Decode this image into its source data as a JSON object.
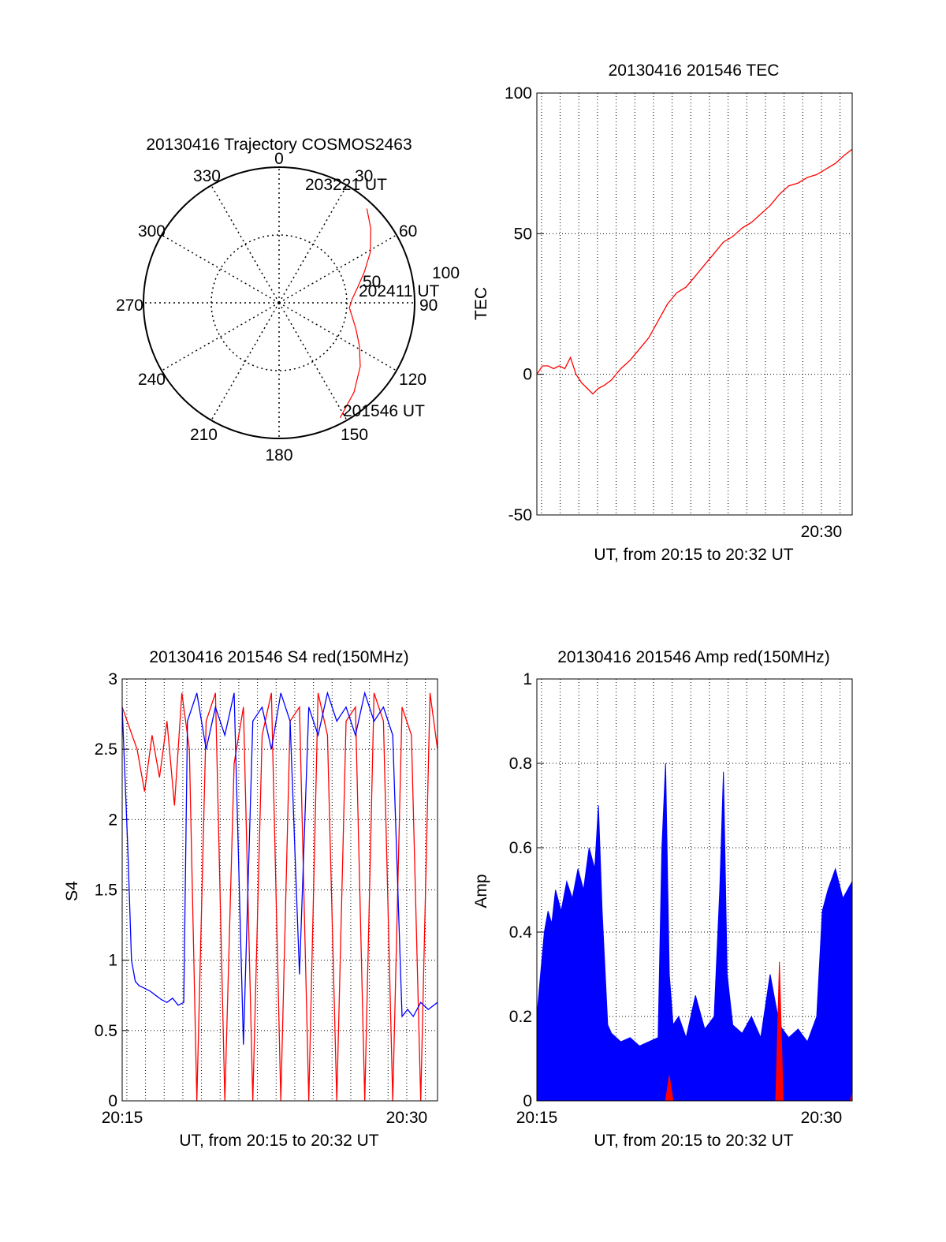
{
  "chart_data": [
    {
      "id": "polar",
      "type": "scatter",
      "title": "20130416 Trajectory COSMOS2463",
      "azimuth_labels": [
        "0",
        "30",
        "60",
        "90",
        "120",
        "150",
        "180",
        "210",
        "240",
        "270",
        "300",
        "330"
      ],
      "radial_labels": [
        "50",
        "100"
      ],
      "point_labels": [
        "203221 UT",
        "202411 UT",
        "201546 UT"
      ],
      "trajectory": {
        "azimuth_deg": [
          152,
          140,
          128,
          118,
          109,
          101,
          94,
          87,
          79,
          70,
          61,
          51,
          43
        ],
        "radius": [
          96,
          86,
          76,
          67,
          60,
          55,
          52,
          54,
          59,
          67,
          77,
          87,
          95
        ]
      },
      "trajectory_color": "#ff0000"
    },
    {
      "id": "tec",
      "type": "line",
      "title": "20130416 201546 TEC",
      "ylabel": "TEC",
      "xlabel": "UT, from 20:15 to 20:32 UT",
      "xlim": [
        0,
        16.9
      ],
      "ylim": [
        -50,
        100
      ],
      "yticks": [
        "-50",
        "0",
        "50",
        "100"
      ],
      "xtick_labels": [
        {
          "x": 15.25,
          "label": "20:30"
        }
      ],
      "x": [
        0,
        0.3,
        0.6,
        0.9,
        1.2,
        1.5,
        1.8,
        2.1,
        2.4,
        2.7,
        3.0,
        3.3,
        3.6,
        4.0,
        4.5,
        5.0,
        5.5,
        6.0,
        6.5,
        7.0,
        7.5,
        8.0,
        8.5,
        9.0,
        9.5,
        10.0,
        10.5,
        11.0,
        11.5,
        12.0,
        12.5,
        13.0,
        13.5,
        14.0,
        14.5,
        15.0,
        15.5,
        16.0,
        16.5,
        16.9
      ],
      "y": [
        0,
        3,
        3,
        2,
        3,
        2,
        6,
        0,
        -3,
        -5,
        -7,
        -5,
        -4,
        -2,
        2,
        5,
        9,
        13,
        19,
        25,
        29,
        31,
        35,
        39,
        43,
        47,
        49,
        52,
        54,
        57,
        60,
        64,
        67,
        68,
        70,
        71,
        73,
        75,
        78,
        80
      ],
      "color": "#ff0000"
    },
    {
      "id": "s4",
      "type": "line",
      "title": "20130416 201546 S4 red(150MHz)",
      "ylabel": "S4",
      "xlabel": "UT, from 20:15 to 20:32 UT",
      "xlim": [
        0,
        16.9
      ],
      "ylim": [
        0,
        3
      ],
      "yticks": [
        "0",
        "0.5",
        "1",
        "1.5",
        "2",
        "2.5",
        "3"
      ],
      "xtick_labels": [
        {
          "x": 0,
          "label": "20:15"
        },
        {
          "x": 15.25,
          "label": "20:30"
        }
      ],
      "series": [
        {
          "color": "#ff0000",
          "x": [
            0,
            0.8,
            1.2,
            1.6,
            2.0,
            2.4,
            2.8,
            3.2,
            3.6,
            4.0,
            4.5,
            5.0,
            5.5,
            6.0,
            6.5,
            7.0,
            7.5,
            8.0,
            8.5,
            9.0,
            9.5,
            10.0,
            10.5,
            11.0,
            11.5,
            12.0,
            12.5,
            13.0,
            13.5,
            14.0,
            14.5,
            15.0,
            15.5,
            16.0,
            16.5,
            16.9
          ],
          "y": [
            2.8,
            2.5,
            2.2,
            2.6,
            2.3,
            2.7,
            2.1,
            2.9,
            2.5,
            0.0,
            2.7,
            2.9,
            0.0,
            2.4,
            2.8,
            0.0,
            2.6,
            2.9,
            0.0,
            2.7,
            2.8,
            0.0,
            2.9,
            2.6,
            0.0,
            2.7,
            2.8,
            0.0,
            2.9,
            2.7,
            0.0,
            2.8,
            2.6,
            0.0,
            2.9,
            2.5
          ]
        },
        {
          "color": "#0000ff",
          "x": [
            0,
            0.3,
            0.5,
            0.7,
            0.9,
            1.2,
            1.5,
            1.8,
            2.1,
            2.4,
            2.7,
            3.0,
            3.3,
            3.5,
            4.0,
            4.5,
            5.0,
            5.5,
            6.0,
            6.5,
            7.0,
            7.5,
            8.0,
            8.5,
            9.0,
            9.5,
            10.0,
            10.5,
            11.0,
            11.5,
            12.0,
            12.5,
            13.0,
            13.5,
            14.0,
            14.5,
            15.0,
            15.3,
            15.6,
            16.0,
            16.4,
            16.9
          ],
          "y": [
            2.8,
            1.8,
            1.0,
            0.85,
            0.82,
            0.8,
            0.78,
            0.75,
            0.72,
            0.7,
            0.73,
            0.68,
            0.7,
            2.7,
            2.9,
            2.5,
            2.8,
            2.6,
            2.9,
            0.4,
            2.7,
            2.8,
            2.5,
            2.9,
            2.7,
            0.9,
            2.8,
            2.6,
            2.9,
            2.7,
            2.8,
            2.6,
            2.9,
            2.7,
            2.8,
            2.6,
            0.6,
            0.65,
            0.6,
            0.7,
            0.65,
            0.7
          ]
        }
      ]
    },
    {
      "id": "amp",
      "type": "area",
      "title": "20130416 201546 Amp red(150MHz)",
      "ylabel": "Amp",
      "xlabel": "UT, from 20:15 to 20:32 UT",
      "xlim": [
        0,
        16.9
      ],
      "ylim": [
        0,
        1
      ],
      "yticks": [
        "0",
        "0.2",
        "0.4",
        "0.6",
        "0.8",
        "1"
      ],
      "xtick_labels": [
        {
          "x": 0,
          "label": "20:15"
        },
        {
          "x": 15.25,
          "label": "20:30"
        }
      ],
      "series": [
        {
          "color": "#0000ff",
          "x": [
            0,
            0.2,
            0.4,
            0.6,
            0.8,
            1.0,
            1.3,
            1.6,
            1.9,
            2.2,
            2.5,
            2.8,
            3.1,
            3.3,
            3.5,
            3.8,
            4.0,
            4.5,
            5.0,
            5.5,
            6.0,
            6.5,
            6.7,
            6.9,
            7.1,
            7.3,
            7.6,
            8.0,
            8.5,
            9.0,
            9.5,
            9.8,
            10.0,
            10.2,
            10.5,
            11.0,
            11.5,
            12.0,
            12.5,
            13.0,
            13.5,
            14.0,
            14.5,
            15.0,
            15.3,
            15.6,
            16.0,
            16.4,
            16.9
          ],
          "y": [
            0.2,
            0.3,
            0.4,
            0.45,
            0.42,
            0.5,
            0.45,
            0.52,
            0.48,
            0.55,
            0.5,
            0.6,
            0.55,
            0.7,
            0.45,
            0.18,
            0.16,
            0.14,
            0.15,
            0.13,
            0.14,
            0.15,
            0.6,
            0.8,
            0.3,
            0.18,
            0.2,
            0.15,
            0.25,
            0.17,
            0.2,
            0.5,
            0.78,
            0.3,
            0.18,
            0.16,
            0.2,
            0.15,
            0.3,
            0.18,
            0.15,
            0.17,
            0.14,
            0.2,
            0.45,
            0.5,
            0.55,
            0.48,
            0.52
          ]
        },
        {
          "color": "#ff0000",
          "x": [
            6.9,
            7.1,
            7.3,
            12.8,
            13.0,
            13.2,
            16.8,
            16.9
          ],
          "y": [
            0.0,
            0.06,
            0.0,
            0.0,
            0.33,
            0.0,
            0.0,
            0.02
          ]
        }
      ]
    }
  ]
}
